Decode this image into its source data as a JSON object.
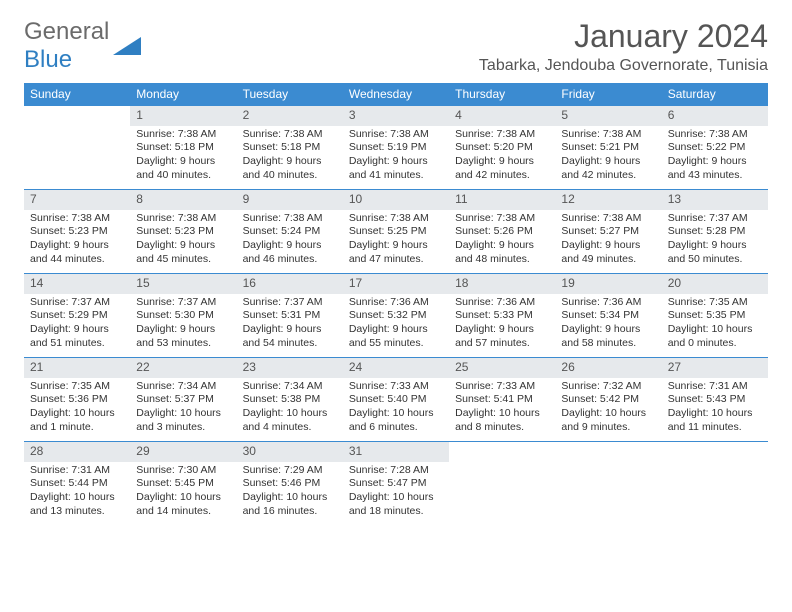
{
  "logo": {
    "general": "General",
    "blue": "Blue"
  },
  "title": "January 2024",
  "location": "Tabarka, Jendouba Governorate, Tunisia",
  "weekdays": [
    "Sunday",
    "Monday",
    "Tuesday",
    "Wednesday",
    "Thursday",
    "Friday",
    "Saturday"
  ],
  "colors": {
    "header_bg": "#3b8bd1",
    "header_fg": "#ffffff",
    "daynum_bg": "#e6e9ec",
    "border": "#3b8bd1",
    "logo_blue": "#2f7fc2",
    "logo_grey": "#6b6b6b",
    "text": "#333333"
  },
  "layout": {
    "first_weekday_index": 1,
    "rows": 5,
    "cols": 7
  },
  "days": [
    {
      "n": "1",
      "sr": "Sunrise: 7:38 AM",
      "ss": "Sunset: 5:18 PM",
      "dl": "Daylight: 9 hours and 40 minutes."
    },
    {
      "n": "2",
      "sr": "Sunrise: 7:38 AM",
      "ss": "Sunset: 5:18 PM",
      "dl": "Daylight: 9 hours and 40 minutes."
    },
    {
      "n": "3",
      "sr": "Sunrise: 7:38 AM",
      "ss": "Sunset: 5:19 PM",
      "dl": "Daylight: 9 hours and 41 minutes."
    },
    {
      "n": "4",
      "sr": "Sunrise: 7:38 AM",
      "ss": "Sunset: 5:20 PM",
      "dl": "Daylight: 9 hours and 42 minutes."
    },
    {
      "n": "5",
      "sr": "Sunrise: 7:38 AM",
      "ss": "Sunset: 5:21 PM",
      "dl": "Daylight: 9 hours and 42 minutes."
    },
    {
      "n": "6",
      "sr": "Sunrise: 7:38 AM",
      "ss": "Sunset: 5:22 PM",
      "dl": "Daylight: 9 hours and 43 minutes."
    },
    {
      "n": "7",
      "sr": "Sunrise: 7:38 AM",
      "ss": "Sunset: 5:23 PM",
      "dl": "Daylight: 9 hours and 44 minutes."
    },
    {
      "n": "8",
      "sr": "Sunrise: 7:38 AM",
      "ss": "Sunset: 5:23 PM",
      "dl": "Daylight: 9 hours and 45 minutes."
    },
    {
      "n": "9",
      "sr": "Sunrise: 7:38 AM",
      "ss": "Sunset: 5:24 PM",
      "dl": "Daylight: 9 hours and 46 minutes."
    },
    {
      "n": "10",
      "sr": "Sunrise: 7:38 AM",
      "ss": "Sunset: 5:25 PM",
      "dl": "Daylight: 9 hours and 47 minutes."
    },
    {
      "n": "11",
      "sr": "Sunrise: 7:38 AM",
      "ss": "Sunset: 5:26 PM",
      "dl": "Daylight: 9 hours and 48 minutes."
    },
    {
      "n": "12",
      "sr": "Sunrise: 7:38 AM",
      "ss": "Sunset: 5:27 PM",
      "dl": "Daylight: 9 hours and 49 minutes."
    },
    {
      "n": "13",
      "sr": "Sunrise: 7:37 AM",
      "ss": "Sunset: 5:28 PM",
      "dl": "Daylight: 9 hours and 50 minutes."
    },
    {
      "n": "14",
      "sr": "Sunrise: 7:37 AM",
      "ss": "Sunset: 5:29 PM",
      "dl": "Daylight: 9 hours and 51 minutes."
    },
    {
      "n": "15",
      "sr": "Sunrise: 7:37 AM",
      "ss": "Sunset: 5:30 PM",
      "dl": "Daylight: 9 hours and 53 minutes."
    },
    {
      "n": "16",
      "sr": "Sunrise: 7:37 AM",
      "ss": "Sunset: 5:31 PM",
      "dl": "Daylight: 9 hours and 54 minutes."
    },
    {
      "n": "17",
      "sr": "Sunrise: 7:36 AM",
      "ss": "Sunset: 5:32 PM",
      "dl": "Daylight: 9 hours and 55 minutes."
    },
    {
      "n": "18",
      "sr": "Sunrise: 7:36 AM",
      "ss": "Sunset: 5:33 PM",
      "dl": "Daylight: 9 hours and 57 minutes."
    },
    {
      "n": "19",
      "sr": "Sunrise: 7:36 AM",
      "ss": "Sunset: 5:34 PM",
      "dl": "Daylight: 9 hours and 58 minutes."
    },
    {
      "n": "20",
      "sr": "Sunrise: 7:35 AM",
      "ss": "Sunset: 5:35 PM",
      "dl": "Daylight: 10 hours and 0 minutes."
    },
    {
      "n": "21",
      "sr": "Sunrise: 7:35 AM",
      "ss": "Sunset: 5:36 PM",
      "dl": "Daylight: 10 hours and 1 minute."
    },
    {
      "n": "22",
      "sr": "Sunrise: 7:34 AM",
      "ss": "Sunset: 5:37 PM",
      "dl": "Daylight: 10 hours and 3 minutes."
    },
    {
      "n": "23",
      "sr": "Sunrise: 7:34 AM",
      "ss": "Sunset: 5:38 PM",
      "dl": "Daylight: 10 hours and 4 minutes."
    },
    {
      "n": "24",
      "sr": "Sunrise: 7:33 AM",
      "ss": "Sunset: 5:40 PM",
      "dl": "Daylight: 10 hours and 6 minutes."
    },
    {
      "n": "25",
      "sr": "Sunrise: 7:33 AM",
      "ss": "Sunset: 5:41 PM",
      "dl": "Daylight: 10 hours and 8 minutes."
    },
    {
      "n": "26",
      "sr": "Sunrise: 7:32 AM",
      "ss": "Sunset: 5:42 PM",
      "dl": "Daylight: 10 hours and 9 minutes."
    },
    {
      "n": "27",
      "sr": "Sunrise: 7:31 AM",
      "ss": "Sunset: 5:43 PM",
      "dl": "Daylight: 10 hours and 11 minutes."
    },
    {
      "n": "28",
      "sr": "Sunrise: 7:31 AM",
      "ss": "Sunset: 5:44 PM",
      "dl": "Daylight: 10 hours and 13 minutes."
    },
    {
      "n": "29",
      "sr": "Sunrise: 7:30 AM",
      "ss": "Sunset: 5:45 PM",
      "dl": "Daylight: 10 hours and 14 minutes."
    },
    {
      "n": "30",
      "sr": "Sunrise: 7:29 AM",
      "ss": "Sunset: 5:46 PM",
      "dl": "Daylight: 10 hours and 16 minutes."
    },
    {
      "n": "31",
      "sr": "Sunrise: 7:28 AM",
      "ss": "Sunset: 5:47 PM",
      "dl": "Daylight: 10 hours and 18 minutes."
    }
  ]
}
